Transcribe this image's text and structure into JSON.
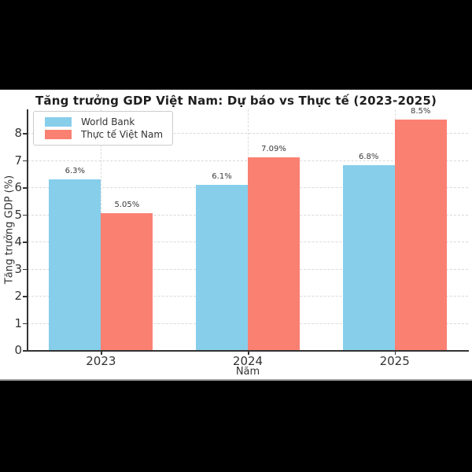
{
  "chart": {
    "title": "Tăng trưởng GDP Việt Nam: Dự báo vs Thực tế (2023-2025)",
    "xlabel": "Năm",
    "ylabel": "Tăng trưởng GDP (%)"
  },
  "chart_data": {
    "type": "bar",
    "title": "Tăng trưởng GDP Việt Nam: Dự báo vs Thực tế (2023-2025)",
    "xlabel": "Năm",
    "ylabel": "Tăng trưởng GDP (%)",
    "categories": [
      "2023",
      "2024",
      "2025"
    ],
    "series": [
      {
        "name": "World Bank",
        "color": "#87CEEB",
        "values": [
          6.3,
          6.1,
          6.8
        ],
        "value_labels": [
          "6.3%",
          "6.1%",
          "6.8%"
        ]
      },
      {
        "name": "Thực tế Việt Nam",
        "color": "#FA8072",
        "values": [
          5.05,
          7.09,
          8.5
        ],
        "value_labels": [
          "5.05%",
          "7.09%",
          "8.5%"
        ]
      }
    ],
    "yticks": [
      0,
      1,
      2,
      3,
      4,
      5,
      6,
      7,
      8
    ],
    "ylim": [
      0,
      8.87
    ],
    "grid": true,
    "grid_style": "dashed-light-gray",
    "legend_position": "upper left",
    "spine_color": "#333333",
    "background": "#ffffff",
    "letterbox_color": "#000000"
  }
}
